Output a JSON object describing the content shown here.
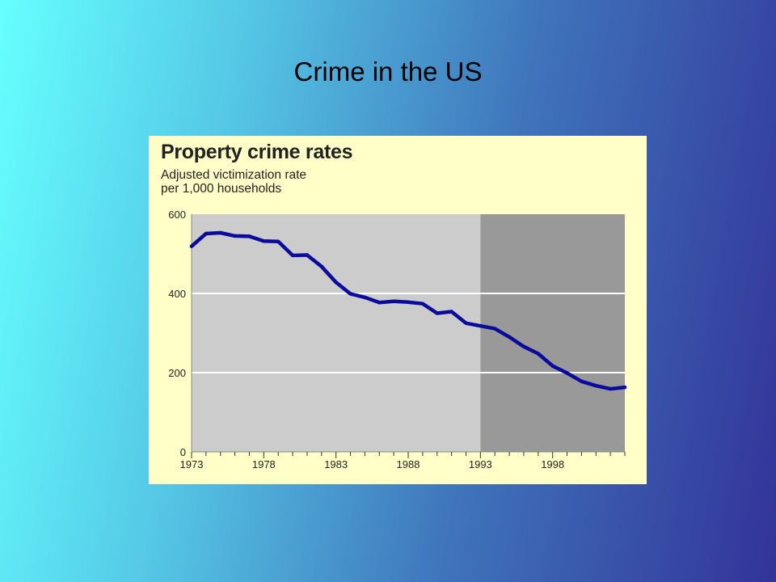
{
  "slide": {
    "title": "Crime in the US"
  },
  "chart_data": {
    "type": "line",
    "title": "Property crime rates",
    "subtitle_lines": [
      "Adjusted victimization rate",
      "per 1,000 households"
    ],
    "xlabel": "",
    "ylabel": "",
    "xlim": [
      1973,
      2003
    ],
    "ylim": [
      0,
      600
    ],
    "yticks": [
      0,
      200,
      400,
      600
    ],
    "xticks": [
      1973,
      1978,
      1983,
      1988,
      1993,
      1998
    ],
    "shaded_from": 1993,
    "grid": true,
    "series": [
      {
        "x": [
          1973,
          1974,
          1975,
          1976,
          1977,
          1978,
          1979,
          1980,
          1981,
          1982,
          1983,
          1984,
          1985,
          1986,
          1987,
          1988,
          1989,
          1990,
          1991,
          1992,
          1993,
          1994,
          1995,
          1996,
          1997,
          1998,
          1999,
          2000,
          2001,
          2002,
          2003
        ],
        "values": [
          519,
          551,
          553,
          545,
          544,
          532,
          531,
          496,
          497,
          468,
          428,
          399,
          390,
          377,
          380,
          378,
          374,
          350,
          354,
          325,
          318,
          311,
          290,
          266,
          248,
          217,
          199,
          178,
          167,
          159,
          163
        ]
      }
    ],
    "colors": {
      "line": "#0a0a9c",
      "plot_bg": "#cccccc",
      "shaded_bg": "#999999",
      "panel_bg": "#ffffc8",
      "gridline": "#ffffff"
    }
  }
}
